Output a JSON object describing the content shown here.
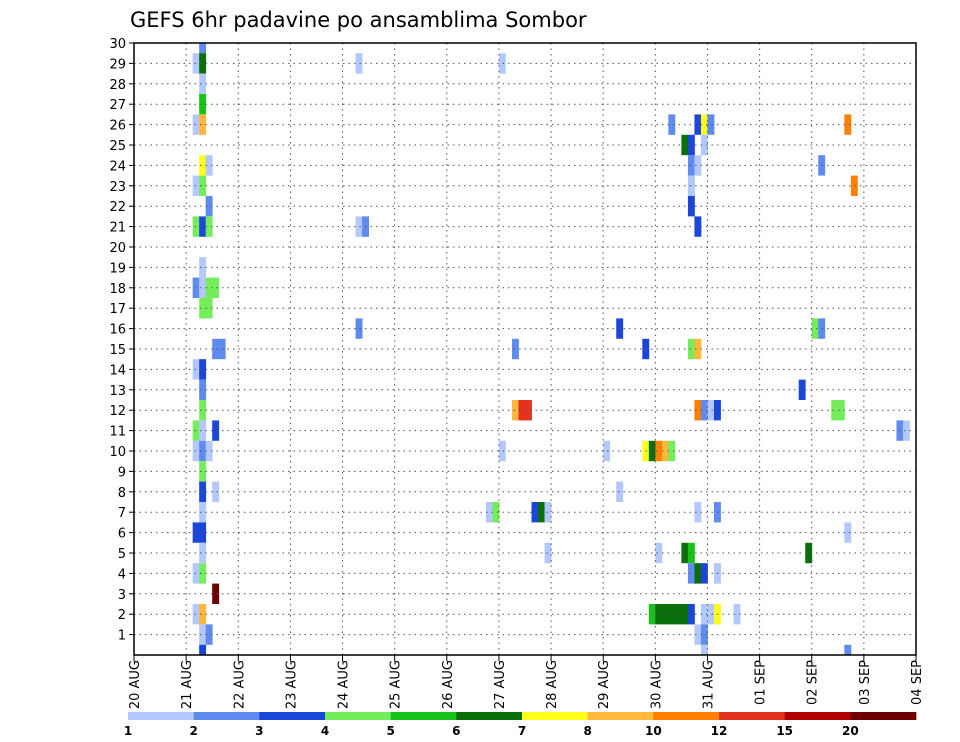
{
  "chart_data": {
    "type": "heatmap",
    "title": "GEFS 6hr padavine po ansamblima Sombor",
    "y_ticks": [
      "1",
      "2",
      "3",
      "4",
      "5",
      "6",
      "7",
      "8",
      "9",
      "10",
      "11",
      "12",
      "13",
      "14",
      "15",
      "16",
      "17",
      "18",
      "19",
      "20",
      "21",
      "22",
      "23",
      "24",
      "25",
      "26",
      "27",
      "28",
      "29",
      "30"
    ],
    "ylim": [
      0,
      30
    ],
    "x_ticks": [
      "20 AUG",
      "21 AUG",
      "22 AUG",
      "23 AUG",
      "24 AUG",
      "25 AUG",
      "26 AUG",
      "27 AUG",
      "28 AUG",
      "29 AUG",
      "30 AUG",
      "31 AUG",
      "01 SEP",
      "02 SEP",
      "03 SEP",
      "04 SEP"
    ],
    "x_step_hours": 6,
    "grid": true,
    "colorbar": {
      "levels": [
        "1",
        "2",
        "3",
        "4",
        "5",
        "6",
        "7",
        "8",
        "10",
        "12",
        "15",
        "20"
      ],
      "colors": [
        "#b3c8ff",
        "#5f8af0",
        "#1a47d8",
        "#73ee5a",
        "#19c219",
        "#0a6e0a",
        "#ffff19",
        "#ffb83c",
        "#ff7f00",
        "#e3321e",
        "#b00000",
        "#6e0000"
      ]
    },
    "cells": [
      {
        "member": 30,
        "step": 10,
        "value": 2.5
      },
      {
        "member": 29,
        "step": 9,
        "value": 1.5
      },
      {
        "member": 29,
        "step": 10,
        "value": 6.5
      },
      {
        "member": 29,
        "step": 34,
        "value": 1.5
      },
      {
        "member": 29,
        "step": 56,
        "value": 1.5
      },
      {
        "member": 28,
        "step": 10,
        "value": 1.5
      },
      {
        "member": 27,
        "step": 10,
        "value": 5.5
      },
      {
        "member": 26,
        "step": 9,
        "value": 1.5
      },
      {
        "member": 26,
        "step": 10,
        "value": 9
      },
      {
        "member": 26,
        "step": 82,
        "value": 2.5
      },
      {
        "member": 26,
        "step": 86,
        "value": 3.5
      },
      {
        "member": 26,
        "step": 87,
        "value": 7.5
      },
      {
        "member": 26,
        "step": 88,
        "value": 2.5
      },
      {
        "member": 26,
        "step": 109,
        "value": 11
      },
      {
        "member": 25,
        "step": 84,
        "value": 6.5
      },
      {
        "member": 25,
        "step": 85,
        "value": 3.5
      },
      {
        "member": 25,
        "step": 87,
        "value": 1.5
      },
      {
        "member": 24,
        "step": 10,
        "value": 7.5
      },
      {
        "member": 24,
        "step": 11,
        "value": 1.5
      },
      {
        "member": 24,
        "step": 85,
        "value": 2.5
      },
      {
        "member": 24,
        "step": 86,
        "value": 1.5
      },
      {
        "member": 24,
        "step": 105,
        "value": 2.5
      },
      {
        "member": 23,
        "step": 9,
        "value": 1.5
      },
      {
        "member": 23,
        "step": 10,
        "value": 4.5
      },
      {
        "member": 23,
        "step": 85,
        "value": 1.5
      },
      {
        "member": 23,
        "step": 110,
        "value": 11
      },
      {
        "member": 22,
        "step": 11,
        "value": 2.5
      },
      {
        "member": 22,
        "step": 85,
        "value": 3.5
      },
      {
        "member": 21,
        "step": 9,
        "value": 4.5
      },
      {
        "member": 21,
        "step": 10,
        "value": 3.5
      },
      {
        "member": 21,
        "step": 11,
        "value": 4.5
      },
      {
        "member": 21,
        "step": 34,
        "value": 1.5
      },
      {
        "member": 21,
        "step": 35,
        "value": 2.5
      },
      {
        "member": 21,
        "step": 86,
        "value": 3.5
      },
      {
        "member": 19,
        "step": 10,
        "value": 1.5
      },
      {
        "member": 18,
        "step": 9,
        "value": 2.5
      },
      {
        "member": 18,
        "step": 10,
        "value": 1.5
      },
      {
        "member": 18,
        "step": 11,
        "value": 4.5
      },
      {
        "member": 18,
        "step": 12,
        "value": 4.5
      },
      {
        "member": 17,
        "step": 10,
        "value": 4.5
      },
      {
        "member": 17,
        "step": 11,
        "value": 4.5
      },
      {
        "member": 16,
        "step": 34,
        "value": 2.5
      },
      {
        "member": 16,
        "step": 74,
        "value": 3.5
      },
      {
        "member": 16,
        "step": 104,
        "value": 4.5
      },
      {
        "member": 16,
        "step": 105,
        "value": 2.5
      },
      {
        "member": 15,
        "step": 12,
        "value": 2.5
      },
      {
        "member": 15,
        "step": 13,
        "value": 2.5
      },
      {
        "member": 15,
        "step": 58,
        "value": 2.5
      },
      {
        "member": 15,
        "step": 78,
        "value": 3.5
      },
      {
        "member": 15,
        "step": 85,
        "value": 4.5
      },
      {
        "member": 15,
        "step": 86,
        "value": 9
      },
      {
        "member": 14,
        "step": 9,
        "value": 1.5
      },
      {
        "member": 14,
        "step": 10,
        "value": 3.5
      },
      {
        "member": 13,
        "step": 10,
        "value": 2.5
      },
      {
        "member": 13,
        "step": 102,
        "value": 3.5
      },
      {
        "member": 12,
        "step": 10,
        "value": 4.5
      },
      {
        "member": 12,
        "step": 58,
        "value": 9
      },
      {
        "member": 12,
        "step": 59,
        "value": 13
      },
      {
        "member": 12,
        "step": 60,
        "value": 13
      },
      {
        "member": 12,
        "step": 86,
        "value": 11
      },
      {
        "member": 12,
        "step": 87,
        "value": 2.5
      },
      {
        "member": 12,
        "step": 88,
        "value": 1.5
      },
      {
        "member": 12,
        "step": 89,
        "value": 3.5
      },
      {
        "member": 12,
        "step": 107,
        "value": 4.5
      },
      {
        "member": 12,
        "step": 108,
        "value": 4.5
      },
      {
        "member": 11,
        "step": 9,
        "value": 4.5
      },
      {
        "member": 11,
        "step": 10,
        "value": 1.5
      },
      {
        "member": 11,
        "step": 12,
        "value": 3.5
      },
      {
        "member": 11,
        "step": 117,
        "value": 2.5
      },
      {
        "member": 11,
        "step": 118,
        "value": 1.5
      },
      {
        "member": 10,
        "step": 9,
        "value": 1.5
      },
      {
        "member": 10,
        "step": 10,
        "value": 2.5
      },
      {
        "member": 10,
        "step": 11,
        "value": 1.5
      },
      {
        "member": 10,
        "step": 56,
        "value": 1.5
      },
      {
        "member": 10,
        "step": 72,
        "value": 1.5
      },
      {
        "member": 10,
        "step": 78,
        "value": 7.5
      },
      {
        "member": 10,
        "step": 79,
        "value": 6.5
      },
      {
        "member": 10,
        "step": 80,
        "value": 11
      },
      {
        "member": 10,
        "step": 81,
        "value": 9
      },
      {
        "member": 10,
        "step": 82,
        "value": 4.5
      },
      {
        "member": 9,
        "step": 10,
        "value": 4.5
      },
      {
        "member": 8,
        "step": 10,
        "value": 3.5
      },
      {
        "member": 8,
        "step": 12,
        "value": 1.5
      },
      {
        "member": 8,
        "step": 74,
        "value": 1.5
      },
      {
        "member": 7,
        "step": 10,
        "value": 1.5
      },
      {
        "member": 7,
        "step": 54,
        "value": 1.5
      },
      {
        "member": 7,
        "step": 55,
        "value": 4.5
      },
      {
        "member": 7,
        "step": 61,
        "value": 3.5
      },
      {
        "member": 7,
        "step": 62,
        "value": 6.5
      },
      {
        "member": 7,
        "step": 63,
        "value": 1.5
      },
      {
        "member": 7,
        "step": 86,
        "value": 1.5
      },
      {
        "member": 7,
        "step": 89,
        "value": 2.5
      },
      {
        "member": 6,
        "step": 9,
        "value": 3.5
      },
      {
        "member": 6,
        "step": 10,
        "value": 3.5
      },
      {
        "member": 6,
        "step": 109,
        "value": 1.5
      },
      {
        "member": 5,
        "step": 10,
        "value": 1.5
      },
      {
        "member": 5,
        "step": 63,
        "value": 1.5
      },
      {
        "member": 5,
        "step": 80,
        "value": 1.5
      },
      {
        "member": 5,
        "step": 84,
        "value": 6.5
      },
      {
        "member": 5,
        "step": 85,
        "value": 5.5
      },
      {
        "member": 5,
        "step": 103,
        "value": 6.5
      },
      {
        "member": 4,
        "step": 9,
        "value": 1.5
      },
      {
        "member": 4,
        "step": 10,
        "value": 4.5
      },
      {
        "member": 4,
        "step": 85,
        "value": 2.5
      },
      {
        "member": 4,
        "step": 86,
        "value": 6.5
      },
      {
        "member": 4,
        "step": 87,
        "value": 3.5
      },
      {
        "member": 4,
        "step": 89,
        "value": 1.5
      },
      {
        "member": 3,
        "step": 12,
        "value": 25
      },
      {
        "member": 2,
        "step": 9,
        "value": 1.5
      },
      {
        "member": 2,
        "step": 10,
        "value": 9
      },
      {
        "member": 2,
        "step": 79,
        "value": 5.5
      },
      {
        "member": 2,
        "step": 80,
        "value": 6.5
      },
      {
        "member": 2,
        "step": 81,
        "value": 6.5
      },
      {
        "member": 2,
        "step": 82,
        "value": 6.5
      },
      {
        "member": 2,
        "step": 83,
        "value": 6.5
      },
      {
        "member": 2,
        "step": 84,
        "value": 6.5
      },
      {
        "member": 2,
        "step": 85,
        "value": 3.5
      },
      {
        "member": 2,
        "step": 87,
        "value": 1.5
      },
      {
        "member": 2,
        "step": 88,
        "value": 1.5
      },
      {
        "member": 2,
        "step": 89,
        "value": 7.5
      },
      {
        "member": 2,
        "step": 92,
        "value": 1.5
      },
      {
        "member": 1,
        "step": 10,
        "value": 1.5
      },
      {
        "member": 1,
        "step": 11,
        "value": 2.5
      },
      {
        "member": 1,
        "step": 86,
        "value": 1.5
      },
      {
        "member": 1,
        "step": 87,
        "value": 2.5
      },
      {
        "member": 0,
        "step": 10,
        "value": 3.5
      },
      {
        "member": 0,
        "step": 87,
        "value": 1.5
      },
      {
        "member": 0,
        "step": 109,
        "value": 2.5
      }
    ]
  }
}
